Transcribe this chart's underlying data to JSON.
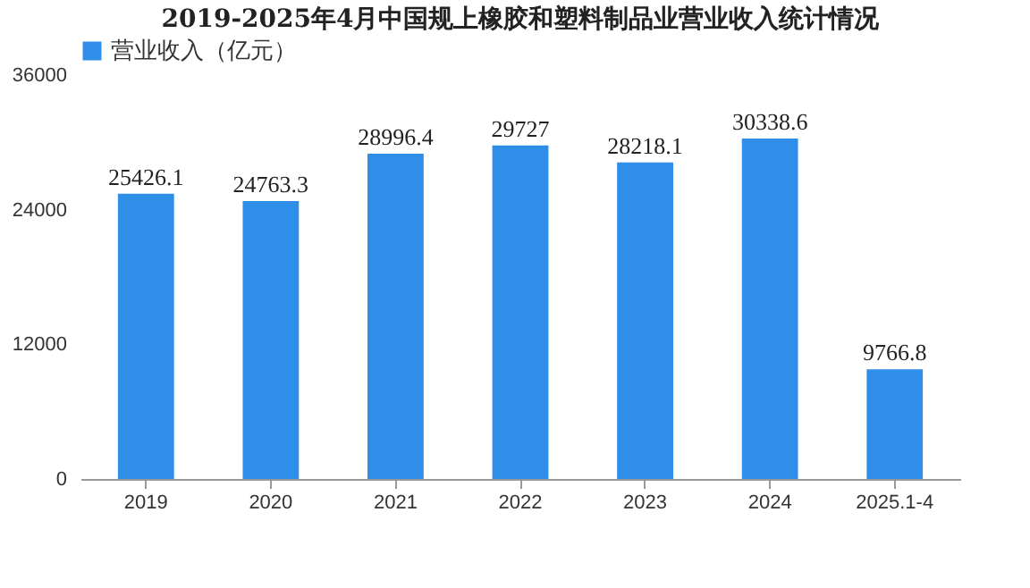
{
  "chart_data": {
    "type": "bar",
    "title": "2019-2025年4月中国规上橡胶和塑料制品业营业收入统计情况",
    "categories": [
      "2019",
      "2020",
      "2021",
      "2022",
      "2023",
      "2024",
      "2025.1-4"
    ],
    "series": [
      {
        "name": "营业收入（亿元）",
        "color": "#2f8fe8",
        "values": [
          25426.1,
          24763.3,
          28996.4,
          29727,
          28218.1,
          30338.6,
          9766.8
        ]
      }
    ],
    "ylim": [
      0,
      36000
    ],
    "yticks": [
      0,
      12000,
      24000,
      36000
    ],
    "data_labels": true,
    "legend": "top",
    "grid": false
  }
}
